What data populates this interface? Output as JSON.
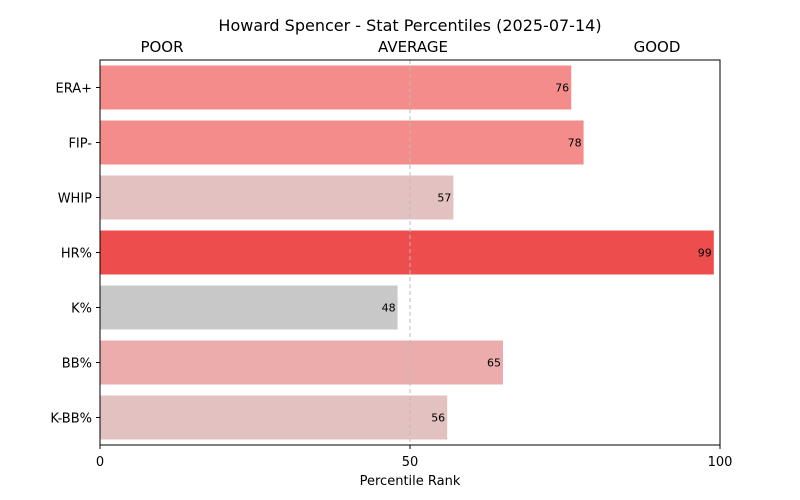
{
  "chart_data": {
    "type": "bar",
    "orientation": "horizontal",
    "title": "Howard Spencer - Stat Percentiles (2025-07-14)",
    "xlabel": "Percentile Rank",
    "ylabel": "",
    "xlim": [
      0,
      100
    ],
    "xticks": [
      "0",
      "50",
      "100"
    ],
    "reference_line": 50,
    "zone_labels": [
      "POOR",
      "AVERAGE",
      "GOOD"
    ],
    "categories": [
      "ERA+",
      "FIP-",
      "WHIP",
      "HR%",
      "K%",
      "BB%",
      "K-BB%"
    ],
    "values": [
      76,
      78,
      57,
      99,
      48,
      65,
      56
    ],
    "value_labels": [
      "76",
      "78",
      "57",
      "99",
      "48",
      "65",
      "56"
    ],
    "colors": [
      "#f48c8b",
      "#f48c8b",
      "#e3c1c1",
      "#ee4d4e",
      "#c8c8c8",
      "#ebacac",
      "#e3c1c1"
    ],
    "grid": false
  }
}
